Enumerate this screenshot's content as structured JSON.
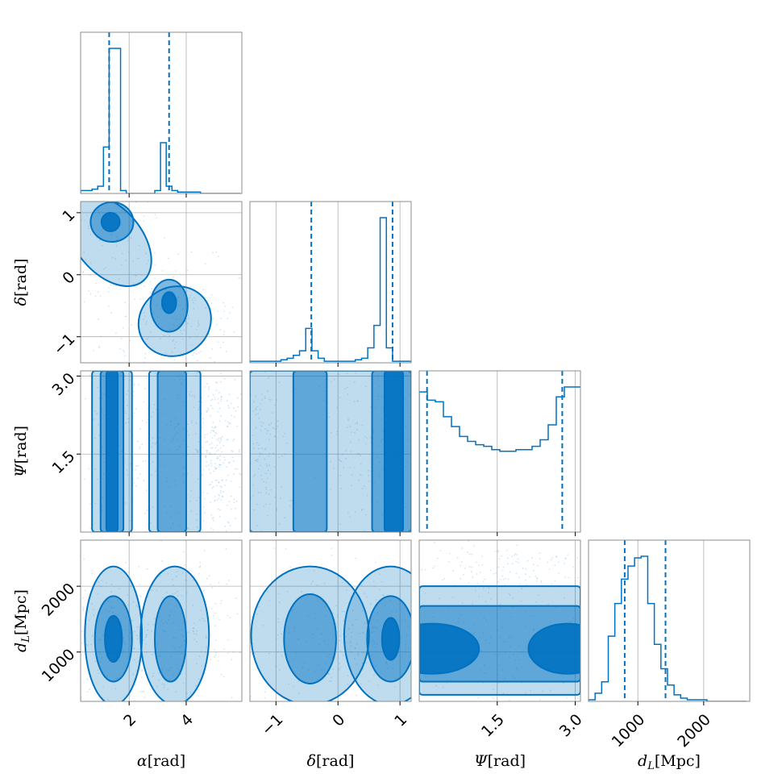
{
  "chart_data": {
    "type": "corner",
    "colors": {
      "line": "#0072c1",
      "fill": "#0072c1",
      "frame": "#8c8c8c",
      "grid": "#b0b0b0"
    },
    "parameters": [
      {
        "key": "alpha",
        "label_sym": "α",
        "label_sub": "",
        "label_unit": "[rad]",
        "range": [
          0.3,
          5.95
        ],
        "ticks": [
          2,
          4
        ],
        "tick_labels": [
          "2",
          "4"
        ]
      },
      {
        "key": "delta",
        "label_sym": "δ",
        "label_sub": "",
        "label_unit": "[rad]",
        "range": [
          -1.42,
          1.18
        ],
        "ticks": [
          -1,
          0,
          1
        ],
        "tick_labels": [
          "−1",
          "0",
          "1"
        ]
      },
      {
        "key": "psi",
        "label_sym": "Ψ",
        "label_sub": "",
        "label_unit": "[rad]",
        "range": [
          0.0,
          3.1
        ],
        "ticks": [
          1.5,
          3.0
        ],
        "tick_labels": [
          "1.5",
          "3.0"
        ]
      },
      {
        "key": "dL",
        "label_sym": "d",
        "label_sub": "L",
        "label_unit": "[Mpc]",
        "range": [
          250,
          2700
        ],
        "ticks": [
          1000,
          2000
        ],
        "tick_labels": [
          "1000",
          "2000"
        ]
      }
    ],
    "marginals": [
      {
        "param": "alpha",
        "edges_start": 0.3,
        "bin_width": 0.2,
        "counts": [
          0.02,
          0.02,
          0.03,
          0.05,
          0.32,
          1.0,
          1.0,
          0.02,
          0,
          0,
          0,
          0,
          0,
          0.02,
          0.35,
          0.05,
          0.02,
          0.01,
          0.01,
          0.01,
          0.01,
          0,
          0,
          0,
          0,
          0,
          0,
          0
        ],
        "quantiles": [
          1.3,
          3.4
        ]
      },
      {
        "param": "delta",
        "edges_start": -1.42,
        "bin_width": 0.1,
        "counts": [
          0.01,
          0.01,
          0.01,
          0.01,
          0.01,
          0.02,
          0.03,
          0.05,
          0.08,
          0.23,
          0.08,
          0.03,
          0.01,
          0.01,
          0.01,
          0.01,
          0.01,
          0.02,
          0.03,
          0.1,
          0.25,
          0.97,
          0.1,
          0.01,
          0.01,
          0.01
        ],
        "quantiles": [
          -0.43,
          0.88
        ]
      },
      {
        "param": "psi",
        "edges_start": 0.0,
        "bin_width": 0.155,
        "counts": [
          0.85,
          0.8,
          0.79,
          0.7,
          0.64,
          0.58,
          0.55,
          0.53,
          0.52,
          0.5,
          0.49,
          0.49,
          0.5,
          0.5,
          0.52,
          0.56,
          0.65,
          0.82,
          0.88,
          0.88
        ],
        "quantiles": [
          0.15,
          2.75
        ]
      },
      {
        "param": "dL",
        "edges_start": 250,
        "bin_width": 100,
        "counts": [
          0.01,
          0.05,
          0.12,
          0.4,
          0.6,
          0.75,
          0.83,
          0.88,
          0.89,
          0.6,
          0.35,
          0.2,
          0.1,
          0.04,
          0.02,
          0.01,
          0.01,
          0.01,
          0.0,
          0.0,
          0.0,
          0.0,
          0.0,
          0.0
        ],
        "quantiles": [
          800,
          1420
        ]
      }
    ]
  }
}
